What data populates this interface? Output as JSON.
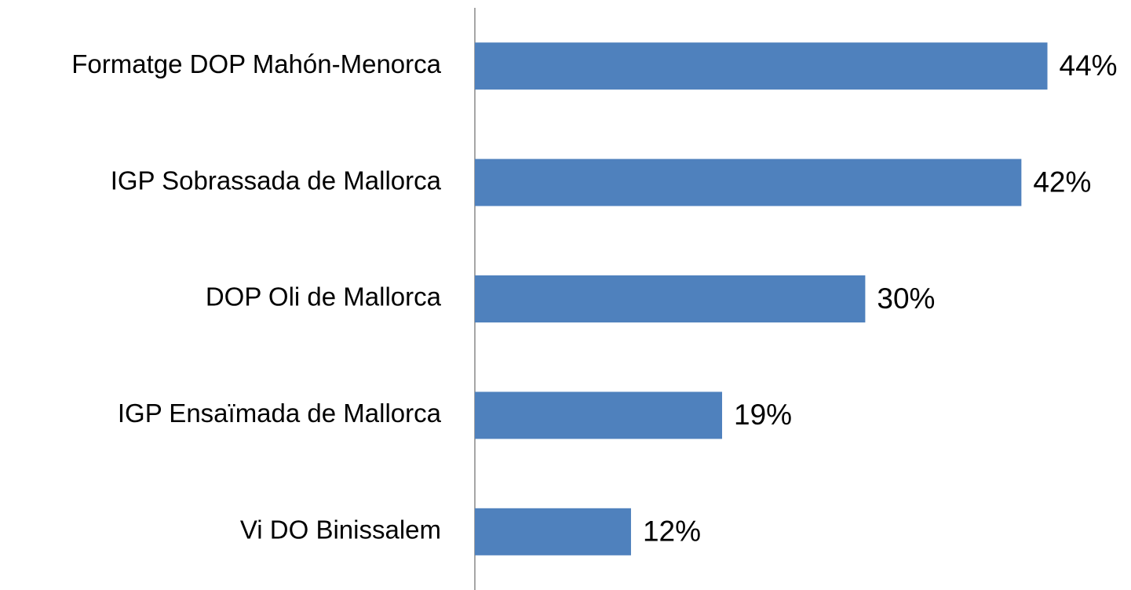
{
  "chart_data": {
    "type": "barh",
    "categories": [
      "Formatge DOP Mahón-Menorca",
      "IGP Sobrassada de Mallorca",
      "DOP Oli de Mallorca",
      "IGP Ensaïmada de Mallorca",
      "Vi DO Binissalem"
    ],
    "values": [
      44,
      42,
      30,
      19,
      12
    ],
    "value_labels": [
      "44%",
      "42%",
      "30%",
      "19%",
      "12%"
    ],
    "color": "#4f81bd",
    "xlim": [
      0,
      50
    ]
  }
}
